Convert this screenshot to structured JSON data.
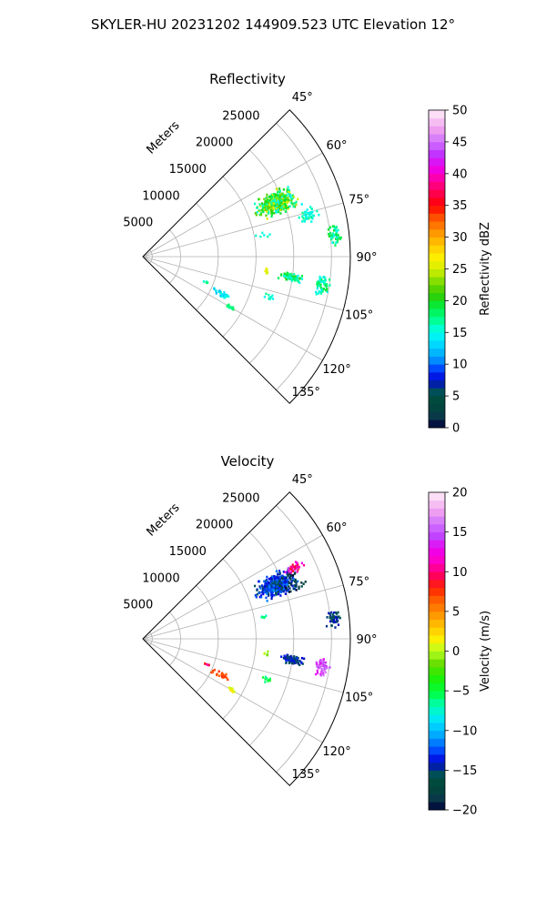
{
  "figure": {
    "suptitle": "SKYLER-HU  20231202  144909.523 UTC Elevation 12°"
  },
  "chart_data": [
    {
      "type": "scatter",
      "subtype": "polar-sector",
      "title": "Reflectivity",
      "radial_label": "Meters",
      "range_max": 27500,
      "angle_range": [
        45,
        135
      ],
      "radial_ticks": [
        5000,
        10000,
        15000,
        20000,
        25000
      ],
      "radial_tick_labels": [
        "5000",
        "10000",
        "15000",
        "20000",
        "25000"
      ],
      "angle_ticks": [
        45,
        60,
        75,
        90,
        105,
        120,
        135
      ],
      "angle_tick_labels": [
        "45°",
        "60°",
        "75°",
        "90°",
        "105°",
        "120°",
        "135°"
      ],
      "grid": true,
      "colorbar": {
        "label": "Reflectivity dBZ",
        "min": 0,
        "max": 50,
        "ticks": [
          0,
          5,
          10,
          15,
          20,
          25,
          30,
          35,
          40,
          45,
          50
        ],
        "tick_labels": [
          "0",
          "5",
          "10",
          "15",
          "20",
          "25",
          "30",
          "35",
          "40",
          "45",
          "50"
        ]
      },
      "echo_regions": [
        {
          "az": 68,
          "range": 19000,
          "daz": 6,
          "drange": 3500,
          "count": 380,
          "value_min": 14,
          "value_max": 26
        },
        {
          "az": 76,
          "range": 22500,
          "daz": 3,
          "drange": 1500,
          "count": 40,
          "value_min": 14,
          "value_max": 18
        },
        {
          "az": 84,
          "range": 25500,
          "daz": 4,
          "drange": 1200,
          "count": 45,
          "value_min": 14,
          "value_max": 20
        },
        {
          "az": 98,
          "range": 20000,
          "daz": 2,
          "drange": 2000,
          "count": 80,
          "value_min": 14,
          "value_max": 21
        },
        {
          "az": 99,
          "range": 24000,
          "daz": 4,
          "drange": 1200,
          "count": 55,
          "value_min": 14,
          "value_max": 20
        },
        {
          "az": 97,
          "range": 16500,
          "daz": 3,
          "drange": 500,
          "count": 6,
          "value_min": 24,
          "value_max": 27
        },
        {
          "az": 115,
          "range": 11500,
          "daz": 3,
          "drange": 1800,
          "count": 25,
          "value_min": 12,
          "value_max": 16
        },
        {
          "az": 120,
          "range": 13500,
          "daz": 1.5,
          "drange": 700,
          "count": 15,
          "value_min": 16,
          "value_max": 20
        },
        {
          "az": 108,
          "range": 17500,
          "daz": 2,
          "drange": 1500,
          "count": 10,
          "value_min": 14,
          "value_max": 18
        },
        {
          "az": 112,
          "range": 9000,
          "daz": 1,
          "drange": 800,
          "count": 6,
          "value_min": 14,
          "value_max": 18
        },
        {
          "az": 80,
          "range": 16000,
          "daz": 2,
          "drange": 1500,
          "count": 6,
          "value_min": 14,
          "value_max": 18
        }
      ]
    },
    {
      "type": "scatter",
      "subtype": "polar-sector",
      "title": "Velocity",
      "radial_label": "Meters",
      "range_max": 27500,
      "angle_range": [
        45,
        135
      ],
      "radial_ticks": [
        5000,
        10000,
        15000,
        20000,
        25000
      ],
      "radial_tick_labels": [
        "5000",
        "10000",
        "15000",
        "20000",
        "25000"
      ],
      "angle_ticks": [
        45,
        60,
        75,
        90,
        105,
        120,
        135
      ],
      "angle_tick_labels": [
        "45°",
        "60°",
        "75°",
        "90°",
        "105°",
        "120°",
        "135°"
      ],
      "grid": true,
      "colorbar": {
        "label": "Velocity (m/s)",
        "min": -20,
        "max": 20,
        "ticks": [
          -20,
          -15,
          -10,
          -5,
          0,
          5,
          10,
          15,
          20
        ],
        "tick_labels": [
          "−20",
          "−15",
          "−10",
          "−5",
          "0",
          "5",
          "10",
          "15",
          "20"
        ]
      },
      "echo_regions": [
        {
          "az": 68,
          "range": 19000,
          "daz": 6,
          "drange": 3500,
          "count": 380,
          "value_min": -16,
          "value_max": -11
        },
        {
          "az": 65,
          "range": 22000,
          "daz": 2,
          "drange": 1500,
          "count": 40,
          "value_min": 8,
          "value_max": 16
        },
        {
          "az": 70,
          "range": 21000,
          "daz": 5,
          "drange": 2500,
          "count": 30,
          "value_min": -20,
          "value_max": -17
        },
        {
          "az": 84,
          "range": 25500,
          "daz": 4,
          "drange": 1200,
          "count": 45,
          "value_min": -16,
          "value_max": -14
        },
        {
          "az": 98,
          "range": 20000,
          "daz": 2,
          "drange": 2000,
          "count": 80,
          "value_min": -16,
          "value_max": -13
        },
        {
          "az": 99,
          "range": 24000,
          "daz": 4,
          "drange": 1200,
          "count": 55,
          "value_min": 13,
          "value_max": 17
        },
        {
          "az": 97,
          "range": 16500,
          "daz": 3,
          "drange": 500,
          "count": 6,
          "value_min": -2,
          "value_max": 1
        },
        {
          "az": 115,
          "range": 11500,
          "daz": 3,
          "drange": 1800,
          "count": 25,
          "value_min": 6,
          "value_max": 8
        },
        {
          "az": 120,
          "range": 13500,
          "daz": 1.5,
          "drange": 700,
          "count": 15,
          "value_min": 0,
          "value_max": 2
        },
        {
          "az": 108,
          "range": 17500,
          "daz": 2,
          "drange": 1500,
          "count": 10,
          "value_min": -7,
          "value_max": -4
        },
        {
          "az": 112,
          "range": 9000,
          "daz": 1,
          "drange": 800,
          "count": 6,
          "value_min": 8,
          "value_max": 12
        },
        {
          "az": 80,
          "range": 16000,
          "daz": 2,
          "drange": 1500,
          "count": 6,
          "value_min": -8,
          "value_max": -5
        }
      ]
    }
  ]
}
